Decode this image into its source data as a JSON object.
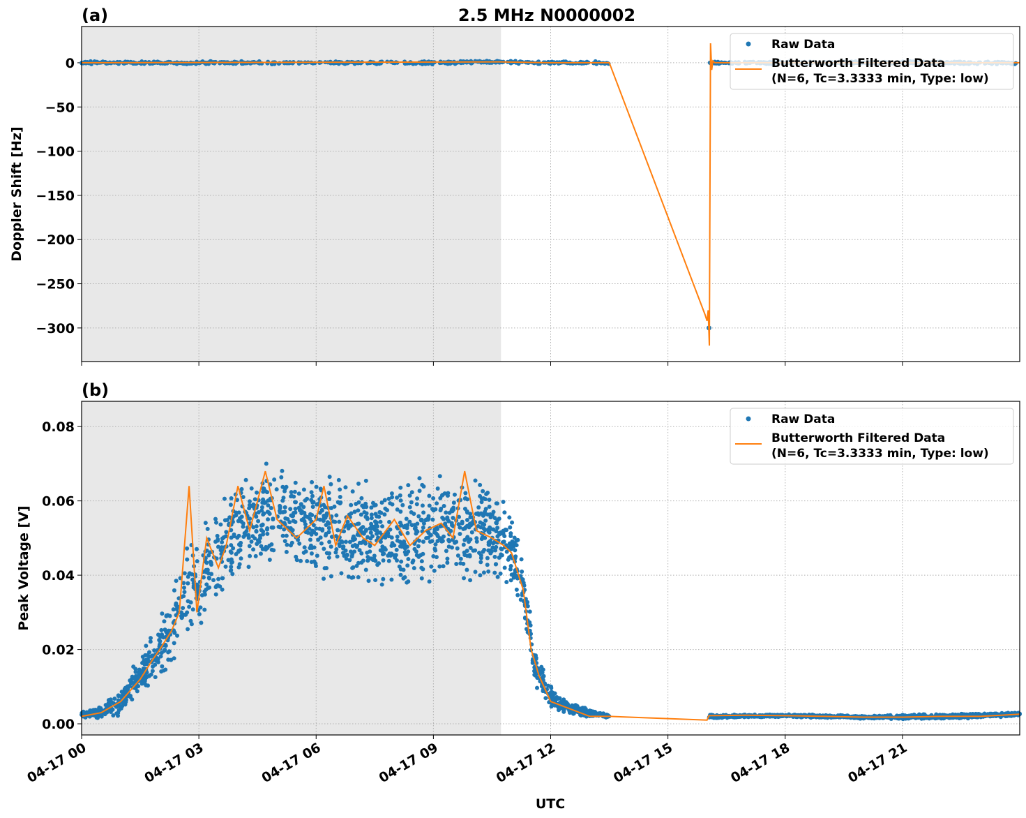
{
  "chart_data": [
    {
      "type": "scatter+line",
      "panel_label": "(a)",
      "title": "2.5 MHz N0000002",
      "ylabel": "Doppler Shift [Hz]",
      "xlabel": "",
      "xlim_hours": [
        0,
        24
      ],
      "ylim": [
        -338,
        41
      ],
      "yticks": [
        0,
        -50,
        -100,
        -150,
        -200,
        -250,
        -300
      ],
      "ytick_labels": [
        "0",
        "−50",
        "−100",
        "−150",
        "−200",
        "−250",
        "−300"
      ],
      "grid": true,
      "night_shading_hours": [
        0,
        10.73
      ],
      "legend": {
        "placement": "top-right",
        "entries": [
          "Raw Data",
          "Butterworth Filtered Data",
          "(N=6, Tc=3.3333 min, Type: low)"
        ]
      },
      "raw_envelope": [
        [
          0,
          0,
          2
        ],
        [
          3,
          0,
          2
        ],
        [
          6,
          0,
          2
        ],
        [
          9,
          0,
          2
        ],
        [
          10.7,
          1,
          2
        ],
        [
          12,
          0,
          2
        ],
        [
          13.5,
          0,
          2
        ],
        [
          16.05,
          0,
          2
        ],
        [
          20,
          0,
          2
        ],
        [
          24,
          0,
          2
        ]
      ],
      "raw_outliers": [
        [
          16.05,
          -300
        ]
      ],
      "filtered": [
        [
          0,
          0
        ],
        [
          10.7,
          1
        ],
        [
          12,
          0
        ],
        [
          13.5,
          0
        ],
        [
          15.95,
          -285
        ],
        [
          16.0,
          -292
        ],
        [
          16.03,
          -280
        ],
        [
          16.06,
          -320
        ],
        [
          16.09,
          22
        ],
        [
          16.12,
          -8
        ],
        [
          16.15,
          2
        ],
        [
          16.2,
          0
        ],
        [
          24,
          0
        ]
      ],
      "series_colors": {
        "raw": "#1f77b4",
        "filtered": "#ff7f0e"
      }
    },
    {
      "type": "scatter+line",
      "panel_label": "(b)",
      "ylabel": "Peak Voltage [V]",
      "xlabel": "UTC",
      "xlim_hours": [
        0,
        24
      ],
      "ylim": [
        -0.003,
        0.0868
      ],
      "yticks": [
        0,
        0.02,
        0.04,
        0.06,
        0.08
      ],
      "ytick_labels": [
        "0.00",
        "0.02",
        "0.04",
        "0.06",
        "0.08"
      ],
      "xticks_hours": [
        0,
        3,
        6,
        9,
        12,
        15,
        18,
        21
      ],
      "xtick_labels": [
        "04-17 00",
        "04-17 03",
        "04-17 06",
        "04-17 09",
        "04-17 12",
        "04-17 15",
        "04-17 18",
        "04-17 21"
      ],
      "grid": true,
      "night_shading_hours": [
        0,
        10.73
      ],
      "legend": {
        "placement": "top-right",
        "entries": [
          "Raw Data",
          "Butterworth Filtered Data",
          "(N=6, Tc=3.3333 min, Type: low)"
        ]
      },
      "raw_envelope": [
        [
          0,
          0.0025,
          0.001
        ],
        [
          0.5,
          0.003,
          0.002
        ],
        [
          1,
          0.006,
          0.004
        ],
        [
          1.5,
          0.013,
          0.007
        ],
        [
          2,
          0.02,
          0.01
        ],
        [
          2.5,
          0.032,
          0.014
        ],
        [
          3,
          0.038,
          0.016
        ],
        [
          3.5,
          0.045,
          0.017
        ],
        [
          4,
          0.052,
          0.017
        ],
        [
          4.7,
          0.056,
          0.017
        ],
        [
          5.5,
          0.053,
          0.017
        ],
        [
          6.5,
          0.054,
          0.017
        ],
        [
          7.5,
          0.05,
          0.018
        ],
        [
          8.5,
          0.051,
          0.018
        ],
        [
          9.5,
          0.054,
          0.017
        ],
        [
          10.5,
          0.052,
          0.016
        ],
        [
          11,
          0.047,
          0.014
        ],
        [
          11.3,
          0.036,
          0.01
        ],
        [
          11.6,
          0.016,
          0.008
        ],
        [
          12,
          0.007,
          0.004
        ],
        [
          12.5,
          0.004,
          0.002
        ],
        [
          13.5,
          0.002,
          0.0005
        ],
        [
          16.05,
          0.002,
          0.0006
        ],
        [
          18,
          0.0022,
          0.0005
        ],
        [
          20,
          0.0018,
          0.0005
        ],
        [
          22,
          0.0019,
          0.0008
        ],
        [
          24,
          0.0026,
          0.0006
        ]
      ],
      "filtered": [
        [
          0,
          0.002
        ],
        [
          0.5,
          0.003
        ],
        [
          1,
          0.006
        ],
        [
          1.5,
          0.012
        ],
        [
          1.8,
          0.017
        ],
        [
          2,
          0.02
        ],
        [
          2.3,
          0.025
        ],
        [
          2.5,
          0.03
        ],
        [
          2.75,
          0.064
        ],
        [
          2.95,
          0.03
        ],
        [
          3.2,
          0.05
        ],
        [
          3.5,
          0.042
        ],
        [
          3.7,
          0.048
        ],
        [
          4,
          0.064
        ],
        [
          4.3,
          0.052
        ],
        [
          4.7,
          0.068
        ],
        [
          5,
          0.055
        ],
        [
          5.5,
          0.05
        ],
        [
          6,
          0.055
        ],
        [
          6.2,
          0.064
        ],
        [
          6.5,
          0.048
        ],
        [
          6.8,
          0.056
        ],
        [
          7.2,
          0.05
        ],
        [
          7.5,
          0.048
        ],
        [
          8,
          0.055
        ],
        [
          8.4,
          0.048
        ],
        [
          8.8,
          0.052
        ],
        [
          9.2,
          0.054
        ],
        [
          9.5,
          0.05
        ],
        [
          9.8,
          0.068
        ],
        [
          10.1,
          0.052
        ],
        [
          10.5,
          0.05
        ],
        [
          10.8,
          0.048
        ],
        [
          11,
          0.046
        ],
        [
          11.3,
          0.036
        ],
        [
          11.5,
          0.02
        ],
        [
          11.7,
          0.013
        ],
        [
          12,
          0.006
        ],
        [
          12.5,
          0.004
        ],
        [
          13,
          0.002
        ],
        [
          13.5,
          0.002
        ],
        [
          16,
          0.001
        ],
        [
          16.05,
          0.0022
        ],
        [
          17,
          0.0023
        ],
        [
          18,
          0.0022
        ],
        [
          19,
          0.002
        ],
        [
          20,
          0.0018
        ],
        [
          21,
          0.0018
        ],
        [
          22,
          0.002
        ],
        [
          23,
          0.002
        ],
        [
          24,
          0.0026
        ]
      ],
      "series_colors": {
        "raw": "#1f77b4",
        "filtered": "#ff7f0e"
      }
    }
  ]
}
